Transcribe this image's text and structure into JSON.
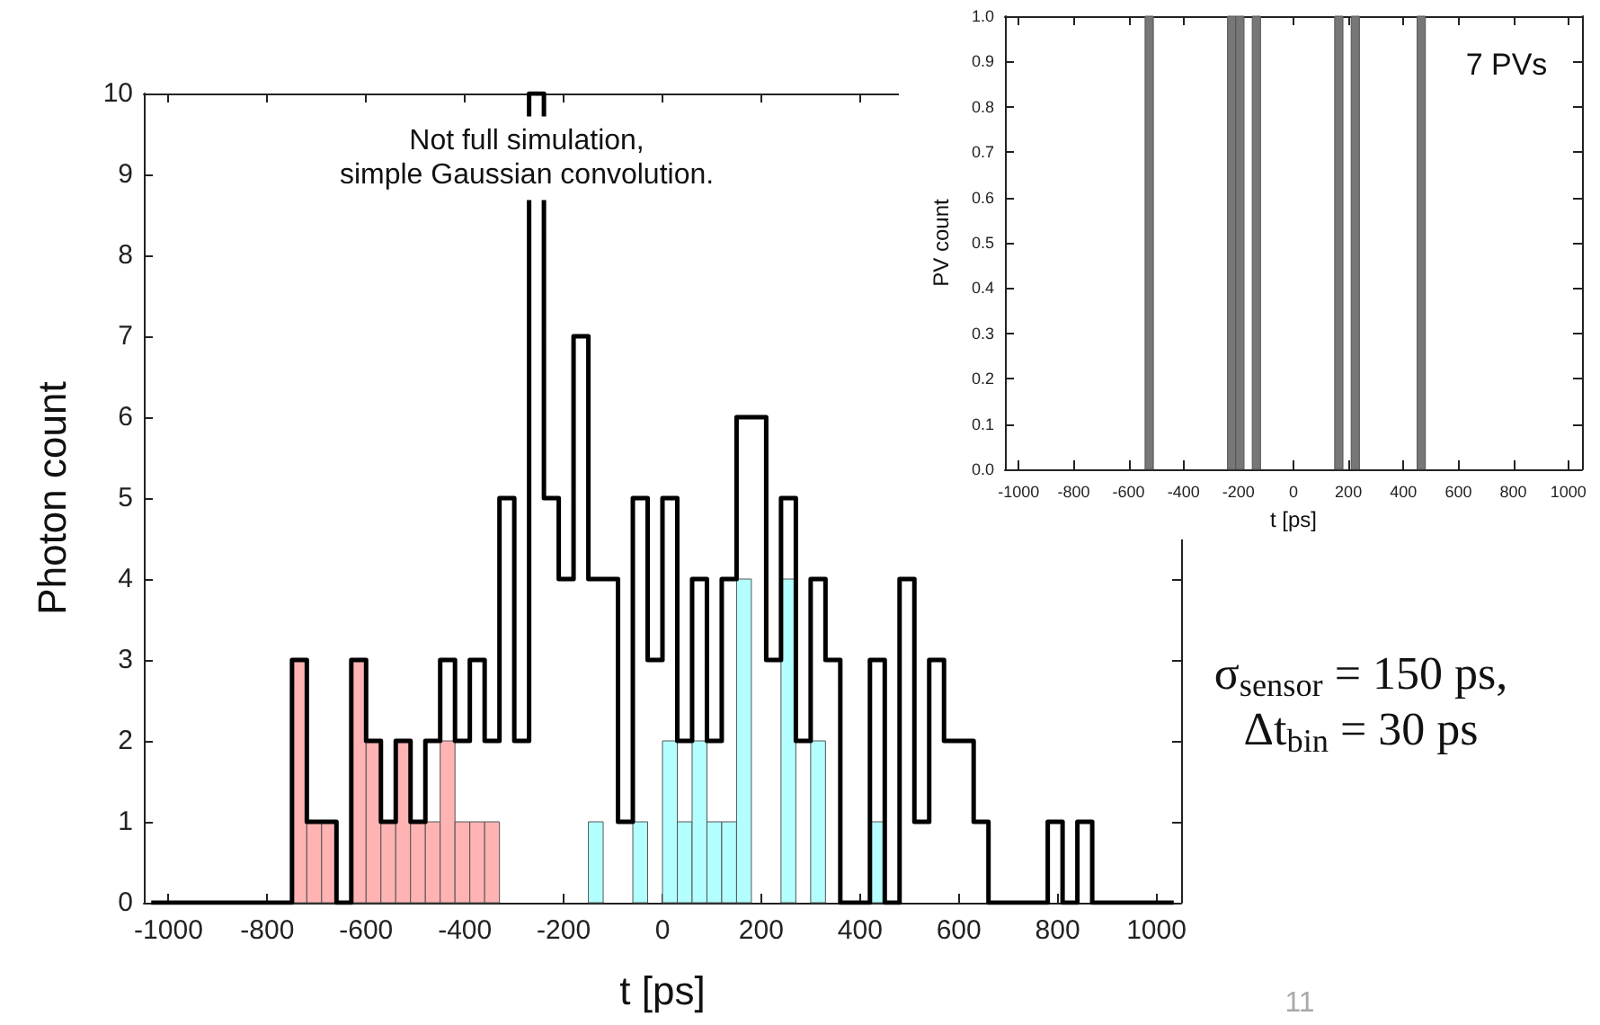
{
  "chart_data": [
    {
      "type": "histogram",
      "xlabel": "t [ps]",
      "ylabel": "Photon count",
      "annotations": [
        "Not full simulation,\nsimple Gaussian convolution.",
        "σ$_{sensor}$ = 150 ps,\nΔt$_{bin}$ = 30 ps",
        "11"
      ],
      "bins": [
        -1050,
        -1020,
        -990,
        -960,
        -930,
        -900,
        -870,
        -840,
        -810,
        -780,
        -750,
        -720,
        -690,
        -660,
        -630,
        -600,
        -570,
        -540,
        -510,
        -480,
        -450,
        -420,
        -390,
        -360,
        -330,
        -300,
        -270,
        -240,
        -210,
        -180,
        -150,
        -120,
        -90,
        -60,
        -30,
        0,
        30,
        60,
        90,
        120,
        150,
        180,
        210,
        240,
        270,
        300,
        330,
        360,
        390,
        420,
        450,
        480,
        510,
        540,
        570,
        600,
        630,
        660,
        690,
        720,
        750,
        780,
        810,
        840,
        870,
        900,
        930,
        960,
        990,
        1020,
        1050
      ],
      "series": [
        {
          "type": "histogram",
          "color": "#ffb3b3",
          "values": [
            0,
            0,
            0,
            0,
            0,
            0,
            0,
            0,
            0,
            0,
            3,
            1,
            1,
            0,
            3,
            2,
            1,
            2,
            1,
            1,
            2,
            1,
            1,
            1,
            0,
            0,
            0,
            0,
            0,
            0,
            0,
            0,
            0,
            0,
            0,
            0,
            0,
            0,
            0,
            0,
            0,
            0,
            0,
            0,
            0,
            0,
            0,
            0,
            0,
            0,
            0,
            0,
            0,
            0,
            0,
            0,
            0,
            0,
            0,
            0,
            0,
            0,
            0,
            0,
            0,
            0,
            0,
            0,
            0,
            0
          ]
        },
        {
          "type": "histogram",
          "color": "#b3ffff",
          "values": [
            0,
            0,
            0,
            0,
            0,
            0,
            0,
            0,
            0,
            0,
            0,
            0,
            0,
            0,
            0,
            0,
            0,
            0,
            0,
            0,
            0,
            0,
            0,
            0,
            0,
            0,
            0,
            0,
            0,
            0,
            1,
            0,
            0,
            1,
            0,
            2,
            1,
            2,
            1,
            1,
            4,
            0,
            0,
            4,
            0,
            2,
            0,
            0,
            0,
            1,
            0,
            0,
            0,
            0,
            0,
            0,
            0,
            0,
            0,
            0,
            0,
            0,
            0,
            0,
            0,
            0,
            0,
            0,
            0,
            0
          ]
        },
        {
          "type": "step",
          "color": "#000000",
          "x": [
            -1035,
            -1005,
            -975,
            -945,
            -915,
            -885,
            -855,
            -825,
            -795,
            -765,
            -735,
            -705,
            -675,
            -645,
            -615,
            -585,
            -555,
            -525,
            -495,
            -465,
            -435,
            -405,
            -375,
            -345,
            -315,
            -285,
            -255,
            -225,
            -195,
            -165,
            -135,
            -105,
            -75,
            -45,
            -15,
            15,
            45,
            75,
            105,
            135,
            165,
            195,
            225,
            255,
            285,
            315,
            345,
            375,
            405,
            435,
            465,
            495,
            525,
            555,
            585,
            615,
            645,
            675,
            705,
            735,
            765,
            795,
            825,
            855,
            885,
            915,
            945,
            975,
            1005,
            1035
          ],
          "values": [
            0,
            0,
            0,
            0,
            0,
            0,
            0,
            0,
            0,
            0,
            3,
            1,
            1,
            0,
            3,
            2,
            1,
            2,
            1,
            2,
            3,
            2,
            3,
            2,
            5,
            2,
            10,
            5,
            4,
            7,
            4,
            4,
            1,
            5,
            3,
            5,
            2,
            4,
            2,
            4,
            6,
            6,
            3,
            5,
            2,
            4,
            3,
            0,
            0,
            3,
            0,
            4,
            1,
            3,
            2,
            2,
            1,
            0,
            0,
            0,
            0,
            1,
            0,
            1,
            0,
            0,
            0,
            0,
            0,
            0
          ]
        }
      ],
      "xlim": [
        -1050,
        1050
      ],
      "xticks": [
        -1000,
        -800,
        -600,
        -400,
        -200,
        0,
        200,
        400,
        600,
        800,
        1000
      ],
      "ylim": [
        0,
        10
      ],
      "yticks": [
        0,
        1,
        2,
        3,
        4,
        5,
        6,
        7,
        8,
        9,
        10
      ]
    },
    {
      "type": "histogram",
      "xlabel": "t [ps]",
      "ylabel": "PV count",
      "annotations": [
        "7 PVs"
      ],
      "bins": [
        -1050,
        -1020,
        -990,
        -960,
        -930,
        -900,
        -870,
        -840,
        -810,
        -780,
        -750,
        -720,
        -690,
        -660,
        -630,
        -600,
        -570,
        -540,
        -510,
        -480,
        -450,
        -420,
        -390,
        -360,
        -330,
        -300,
        -270,
        -240,
        -210,
        -180,
        -150,
        -120,
        -90,
        -60,
        -30,
        0,
        30,
        60,
        90,
        120,
        150,
        180,
        210,
        240,
        270,
        300,
        330,
        360,
        390,
        420,
        450,
        480,
        510,
        540,
        570,
        600,
        630,
        660,
        690,
        720,
        750,
        780,
        810,
        840,
        870,
        900,
        930,
        960,
        990,
        1020,
        1050
      ],
      "series": [
        {
          "type": "histogram",
          "color": "#777777",
          "values": [
            0,
            0,
            0,
            0,
            0,
            0,
            0,
            0,
            0,
            0,
            0,
            0,
            0,
            0,
            0,
            0,
            0,
            1,
            0,
            0,
            0,
            0,
            0,
            0,
            0,
            0,
            0,
            1,
            1,
            0,
            1,
            0,
            0,
            0,
            0,
            0,
            0,
            0,
            0,
            0,
            1,
            0,
            1,
            0,
            0,
            0,
            0,
            0,
            0,
            0,
            1,
            0,
            0,
            0,
            0,
            0,
            0,
            0,
            0,
            0,
            0,
            0,
            0,
            0,
            0,
            0,
            0,
            0,
            0,
            0
          ]
        }
      ],
      "xlim": [
        -1050,
        1050
      ],
      "xticks": [
        -1000,
        -800,
        -600,
        -400,
        -200,
        0,
        200,
        400,
        600,
        800,
        1000
      ],
      "ylim": [
        0,
        1
      ],
      "yticks": [
        {
          "value": 0,
          "label": "0.0"
        },
        0.1,
        0.2,
        0.3,
        0.4,
        0.5,
        0.6,
        0.7,
        0.8,
        0.9,
        {
          "value": 1,
          "label": "1.0"
        }
      ]
    }
  ]
}
